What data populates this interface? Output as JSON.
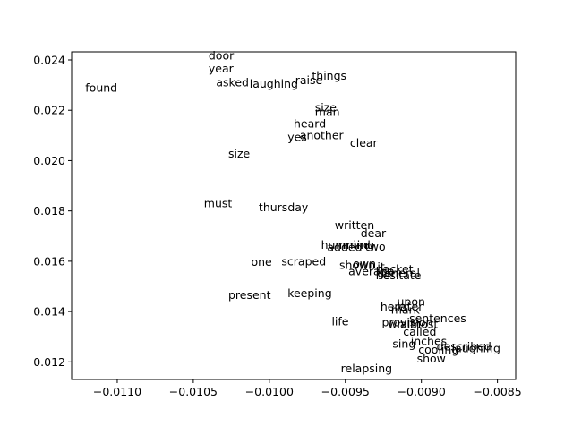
{
  "chart_data": {
    "type": "scatter",
    "title": "",
    "xlabel": "",
    "ylabel": "",
    "xlim": [
      -0.0113,
      -0.00838
    ],
    "ylim": [
      0.0113,
      0.02432
    ],
    "grid": false,
    "x_ticks": [
      -0.011,
      -0.0105,
      -0.01,
      -0.0095,
      -0.009,
      -0.0085
    ],
    "x_tick_labels": [
      "−0.0110",
      "−0.0105",
      "−0.0100",
      "−0.0095",
      "−0.0090",
      "−0.0085"
    ],
    "y_ticks": [
      0.012,
      0.014,
      0.016,
      0.018,
      0.02,
      0.022,
      0.024
    ],
    "y_tick_labels": [
      "0.012",
      "0.014",
      "0.016",
      "0.018",
      "0.020",
      "0.022",
      "0.024"
    ],
    "points": [
      {
        "label": "door",
        "x": -0.0104,
        "y": 0.02418
      },
      {
        "label": "year",
        "x": -0.0104,
        "y": 0.02366
      },
      {
        "label": "asked",
        "x": -0.01035,
        "y": 0.02311
      },
      {
        "label": "laughing",
        "x": -0.01013,
        "y": 0.02306
      },
      {
        "label": "raise",
        "x": -0.00983,
        "y": 0.0232
      },
      {
        "label": "things",
        "x": -0.00972,
        "y": 0.02338
      },
      {
        "label": "found",
        "x": -0.01121,
        "y": 0.0229
      },
      {
        "label": "size",
        "x": -0.0097,
        "y": 0.02211
      },
      {
        "label": "man",
        "x": -0.0097,
        "y": 0.02193
      },
      {
        "label": "heard",
        "x": -0.00984,
        "y": 0.02148
      },
      {
        "label": "yes",
        "x": -0.00988,
        "y": 0.02094
      },
      {
        "label": "another",
        "x": -0.0098,
        "y": 0.02102
      },
      {
        "label": "clear",
        "x": -0.00947,
        "y": 0.02071
      },
      {
        "label": "size",
        "x": -0.01027,
        "y": 0.02029
      },
      {
        "label": "must",
        "x": -0.01043,
        "y": 0.0183
      },
      {
        "label": "thursday",
        "x": -0.01007,
        "y": 0.01815
      },
      {
        "label": "written",
        "x": -0.00957,
        "y": 0.01744
      },
      {
        "label": "dear",
        "x": -0.0094,
        "y": 0.01711
      },
      {
        "label": "humming",
        "x": -0.00966,
        "y": 0.01665
      },
      {
        "label": "mind",
        "x": -0.00952,
        "y": 0.01665
      },
      {
        "label": "added",
        "x": -0.00962,
        "y": 0.01656
      },
      {
        "label": "two",
        "x": -0.00937,
        "y": 0.01658
      },
      {
        "label": "one",
        "x": -0.01012,
        "y": 0.01597
      },
      {
        "label": "scraped",
        "x": -0.00992,
        "y": 0.016
      },
      {
        "label": "shown",
        "x": -0.00954,
        "y": 0.01585
      },
      {
        "label": "own",
        "x": -0.00945,
        "y": 0.0159
      },
      {
        "label": "packet",
        "x": -0.0093,
        "y": 0.0157
      },
      {
        "label": "average",
        "x": -0.00948,
        "y": 0.01561
      },
      {
        "label": "it",
        "x": -0.00929,
        "y": 0.01578
      },
      {
        "label": "general",
        "x": -0.00929,
        "y": 0.01553
      },
      {
        "label": "hesitate",
        "x": -0.0093,
        "y": 0.01544
      },
      {
        "label": "present",
        "x": -0.01027,
        "y": 0.01466
      },
      {
        "label": "keeping",
        "x": -0.00988,
        "y": 0.01474
      },
      {
        "label": "upon",
        "x": -0.00916,
        "y": 0.0144
      },
      {
        "label": "here",
        "x": -0.00927,
        "y": 0.0142
      },
      {
        "label": "later",
        "x": -0.00916,
        "y": 0.0142
      },
      {
        "label": "mark",
        "x": -0.0092,
        "y": 0.01408
      },
      {
        "label": "life",
        "x": -0.00959,
        "y": 0.01362
      },
      {
        "label": "sentences",
        "x": -0.00908,
        "y": 0.01374
      },
      {
        "label": "provision",
        "x": -0.00926,
        "y": 0.01357
      },
      {
        "label": "whilst",
        "x": -0.00922,
        "y": 0.0135
      },
      {
        "label": "almost",
        "x": -0.00914,
        "y": 0.01351
      },
      {
        "label": "called",
        "x": -0.00912,
        "y": 0.0132
      },
      {
        "label": "sing",
        "x": -0.00919,
        "y": 0.01273
      },
      {
        "label": "inches",
        "x": -0.00907,
        "y": 0.01283
      },
      {
        "label": "described",
        "x": -0.0089,
        "y": 0.01262
      },
      {
        "label": "laughing",
        "x": -0.0088,
        "y": 0.01255
      },
      {
        "label": "cooling",
        "x": -0.00902,
        "y": 0.0125
      },
      {
        "label": "show",
        "x": -0.00903,
        "y": 0.01213
      },
      {
        "label": "relapsing",
        "x": -0.00953,
        "y": 0.01174
      }
    ]
  }
}
